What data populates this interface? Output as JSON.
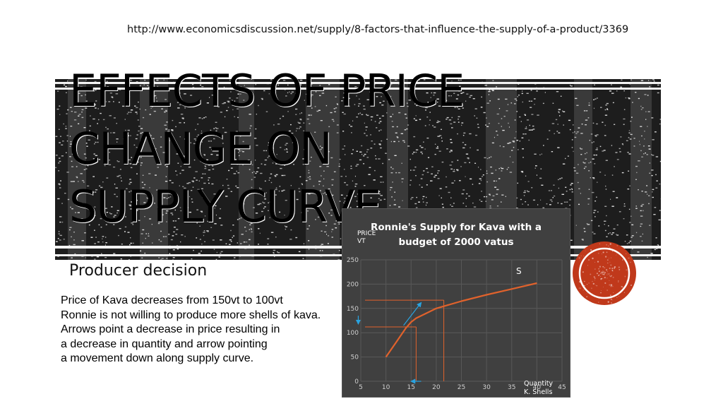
{
  "source_url": "http://www.economicsdiscussion.net/supply/8-factors-that-influence-the-supply-of-a-product/3369",
  "title_lines": [
    "EFFECTS OF PRICE",
    "CHANGE ON",
    "SUPPLY CURVE"
  ],
  "section_label": "Producer decision",
  "body_lines": [
    "Price of Kava decreases from 150vt to 100vt",
    "Ronnie is not willing to produce more shells of kava.",
    "Arrows point a decrease in price resulting in",
    "a decrease in quantity and arrow pointing",
    "a movement down along supply curve."
  ],
  "colors": {
    "accent": "#c0391b",
    "chart_background": "#404040",
    "curve": "#e0622c",
    "arrow": "#29a3e0"
  },
  "chart_data": {
    "type": "line",
    "title_lines": [
      "Ronnie's Supply for Kava with a",
      "budget of 2000 vatus"
    ],
    "ylabel_lines": [
      "PRICE",
      "VT"
    ],
    "xlabel_lines": [
      "Quantity",
      "K. Shells"
    ],
    "curve_label": "S",
    "xlim": [
      5,
      45
    ],
    "ylim": [
      0,
      250
    ],
    "x_ticks": [
      5,
      10,
      15,
      20,
      25,
      30,
      35,
      40,
      45
    ],
    "y_ticks": [
      0,
      50,
      100,
      150,
      200,
      250
    ],
    "grid": true,
    "series": [
      {
        "points": [
          [
            10,
            50
          ],
          [
            12,
            80
          ],
          [
            14,
            110
          ],
          [
            15,
            122
          ],
          [
            16,
            130
          ],
          [
            18,
            140
          ],
          [
            20,
            150
          ],
          [
            25,
            165
          ],
          [
            30,
            178
          ],
          [
            35,
            190
          ],
          [
            40,
            202
          ]
        ]
      }
    ],
    "reference_points": [
      {
        "x": 21.5,
        "y": 167
      },
      {
        "x": 16,
        "y": 112
      }
    ],
    "arrows": [
      {
        "from": [
          13.5,
          115
        ],
        "to": [
          17,
          162
        ]
      },
      {
        "from": [
          4.5,
          135
        ],
        "to": [
          4.5,
          118
        ]
      },
      {
        "from": [
          17,
          0
        ],
        "to": [
          15,
          0
        ]
      }
    ]
  }
}
